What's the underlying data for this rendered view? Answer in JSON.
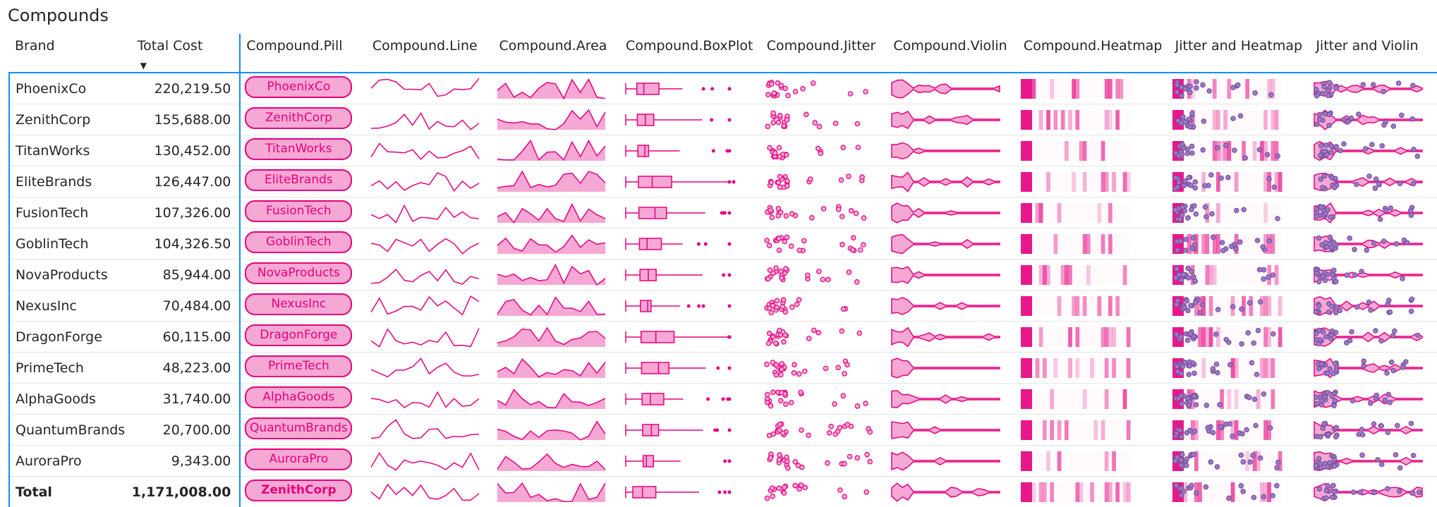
{
  "title": "Compounds",
  "headers": [
    "Brand",
    "Total Cost",
    "Compound.Pill",
    "Compound.Line",
    "Compound.Area",
    "Compound.BoxPlot",
    "Compound.Jitter",
    "Compound.Violin",
    "Compound.Heatmap",
    "Jitter and Heatmap",
    "Jitter and Violin"
  ],
  "sort_indicator": "▼",
  "colors": {
    "accent": "#E6007E",
    "fill": "#F5A8D4",
    "dot": "#7B4FA2",
    "header_line": "#118DFF"
  },
  "rows": [
    {
      "brand": "PhoenixCo",
      "cost": "220,219.50",
      "pill": "PhoenixCo"
    },
    {
      "brand": "ZenithCorp",
      "cost": "155,688.00",
      "pill": "ZenithCorp"
    },
    {
      "brand": "TitanWorks",
      "cost": "130,452.00",
      "pill": "TitanWorks"
    },
    {
      "brand": "EliteBrands",
      "cost": "126,447.00",
      "pill": "EliteBrands"
    },
    {
      "brand": "FusionTech",
      "cost": "107,326.00",
      "pill": "FusionTech"
    },
    {
      "brand": "GoblinTech",
      "cost": "104,326.50",
      "pill": "GoblinTech"
    },
    {
      "brand": "NovaProducts",
      "cost": "85,944.00",
      "pill": "NovaProducts"
    },
    {
      "brand": "NexusInc",
      "cost": "70,484.00",
      "pill": "NexusInc"
    },
    {
      "brand": "DragonForge",
      "cost": "60,115.00",
      "pill": "DragonForge"
    },
    {
      "brand": "PrimeTech",
      "cost": "48,223.00",
      "pill": "PrimeTech"
    },
    {
      "brand": "AlphaGoods",
      "cost": "31,740.00",
      "pill": "AlphaGoods"
    },
    {
      "brand": "QuantumBrands",
      "cost": "20,700.00",
      "pill": "QuantumBrands"
    },
    {
      "brand": "AuroraPro",
      "cost": "9,343.00",
      "pill": "AuroraPro"
    }
  ],
  "total": {
    "label": "Total",
    "cost": "1,171,008.00",
    "pill": "ZenithCorp"
  }
}
